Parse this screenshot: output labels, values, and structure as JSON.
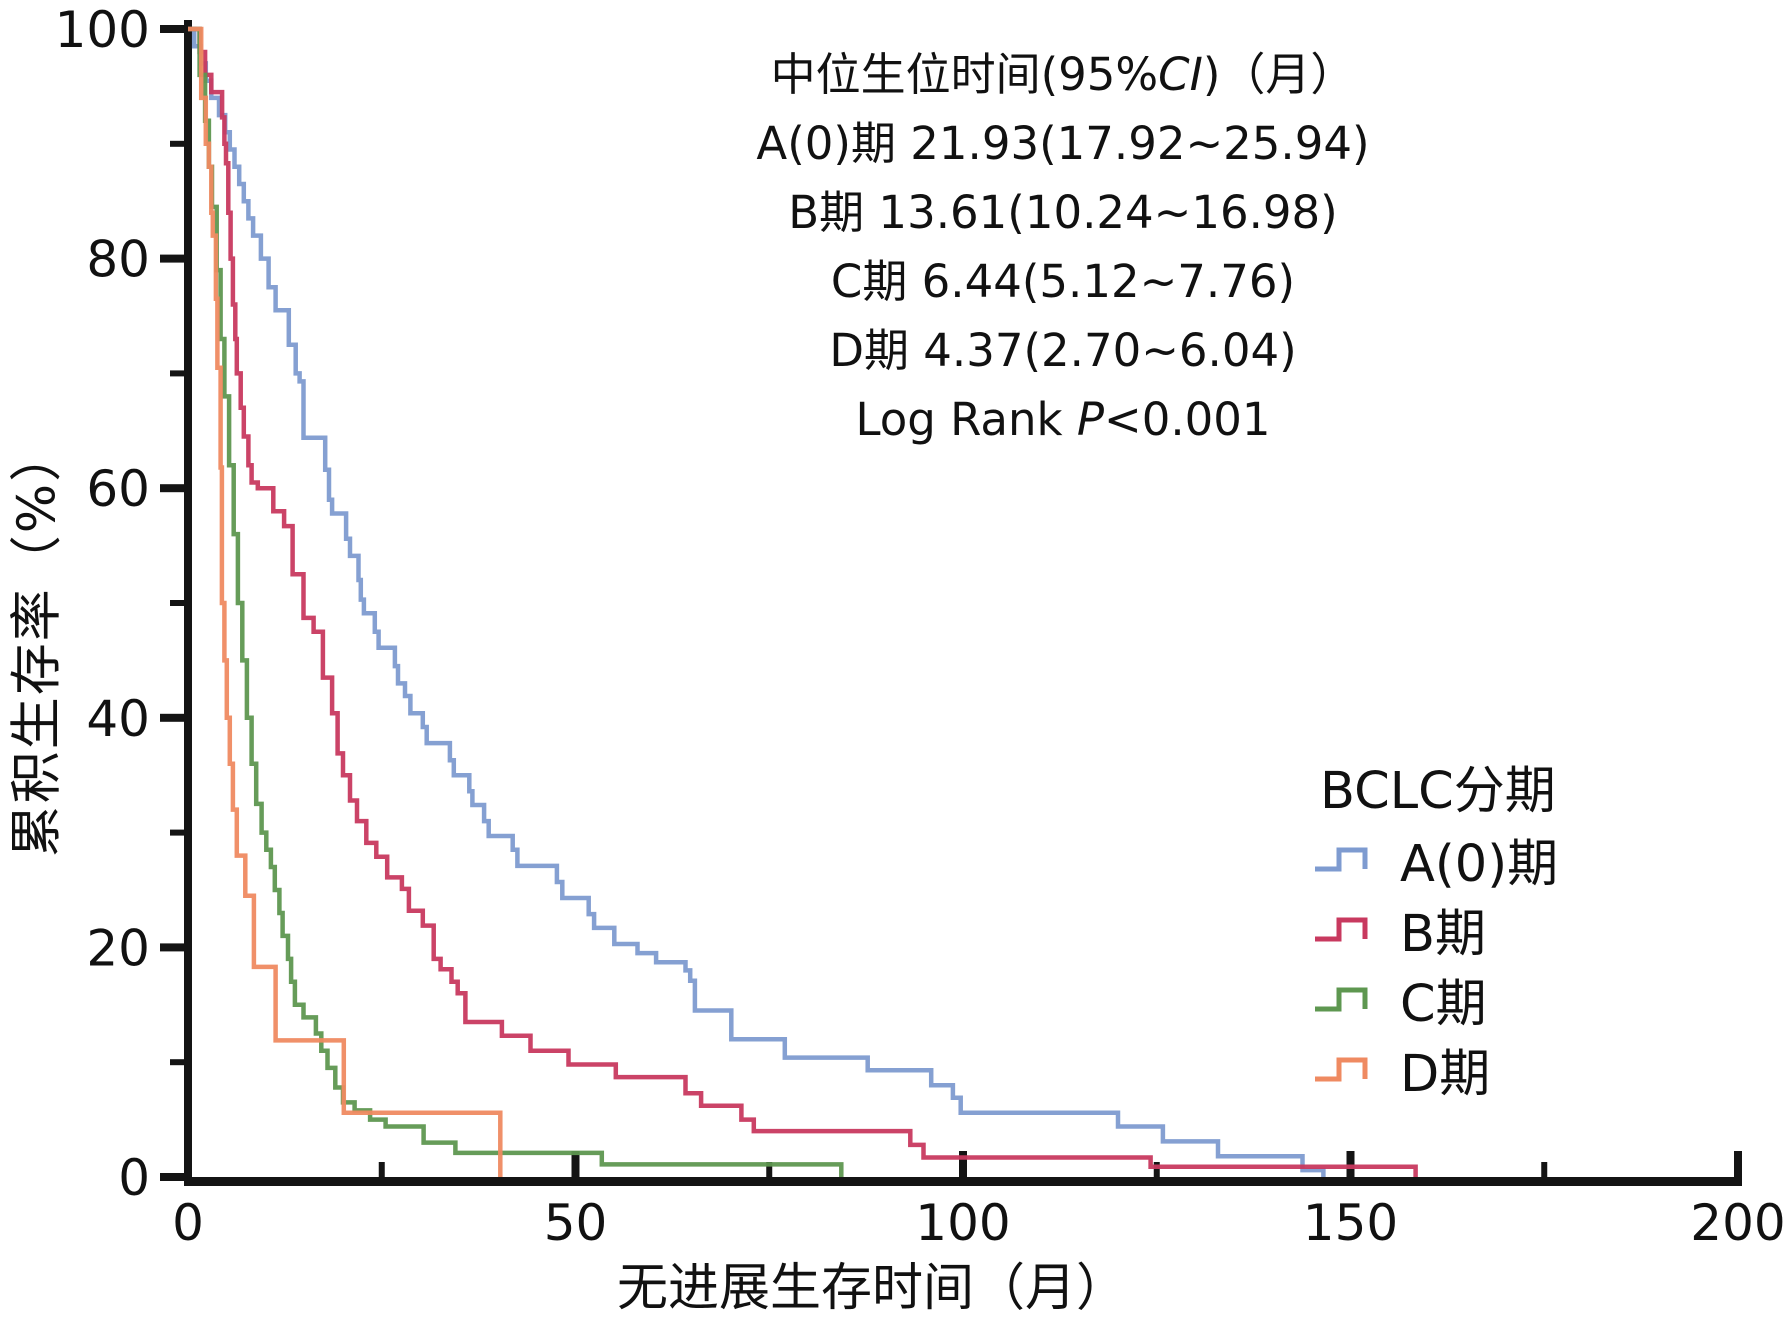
{
  "annotation": {
    "title": {
      "prefix": "中位生位时间(95%",
      "italic": "CI",
      "suffix": ")（月）"
    },
    "lines": [
      "A(0)期 21.93(17.92~25.94)",
      "B期 13.61(10.24~16.98)",
      "C期 6.44(5.12~7.76)",
      "D期 4.37(2.70~6.04)"
    ],
    "logrank": {
      "prefix": "Log Rank ",
      "italic": "P",
      "suffix": "<0.001"
    }
  },
  "legend": {
    "title": "BCLC分期",
    "items": [
      {
        "label": "A(0)期"
      },
      {
        "label": "B期"
      },
      {
        "label": "C期"
      },
      {
        "label": "D期"
      }
    ]
  },
  "chart_data": {
    "type": "line",
    "subtype": "kaplan-meier-step-curves",
    "title": "",
    "xlabel": "无进展生存时间（月）",
    "ylabel": "累积生存率（%）",
    "xlim": [
      0,
      200
    ],
    "ylim": [
      0,
      100
    ],
    "x_major_ticks": [
      0,
      50,
      100,
      150,
      200
    ],
    "x_minor_ticks": [
      25,
      75,
      125,
      175
    ],
    "y_major_ticks": [
      0,
      20,
      40,
      60,
      80,
      100
    ],
    "y_minor_ticks": [
      10,
      30,
      50,
      70,
      90
    ],
    "grid": false,
    "legend_position": "lower right",
    "log_rank_p": "<0.001",
    "axis_color": "#141414",
    "series": [
      {
        "name": "A(0)期",
        "color": "#7E9BD0",
        "median_95ci": "21.93(17.92~25.94)",
        "points": [
          [
            0,
            100
          ],
          [
            0.8,
            98.5
          ],
          [
            1.6,
            97
          ],
          [
            2.3,
            95.5
          ],
          [
            3,
            94
          ],
          [
            4,
            92.5
          ],
          [
            4.8,
            91
          ],
          [
            5.4,
            89.5
          ],
          [
            6,
            88
          ],
          [
            6.6,
            86.5
          ],
          [
            7.2,
            85
          ],
          [
            7.8,
            83.5
          ],
          [
            8.4,
            82
          ],
          [
            9.4,
            80
          ],
          [
            10.4,
            77.5
          ],
          [
            11.3,
            75.5
          ],
          [
            13,
            72.5
          ],
          [
            13.9,
            70
          ],
          [
            14.4,
            69.3
          ],
          [
            14.9,
            64.4
          ],
          [
            17.7,
            61.6
          ],
          [
            18.2,
            59
          ],
          [
            18.6,
            57.8
          ],
          [
            20.4,
            55.6
          ],
          [
            20.9,
            54.1
          ],
          [
            22,
            52
          ],
          [
            22.3,
            50.3
          ],
          [
            22.7,
            49.1
          ],
          [
            24.1,
            47.5
          ],
          [
            24.6,
            46.1
          ],
          [
            26.7,
            44.5
          ],
          [
            27.1,
            43
          ],
          [
            28,
            41.9
          ],
          [
            28.7,
            40.4
          ],
          [
            30.3,
            39.2
          ],
          [
            30.8,
            37.8
          ],
          [
            33.8,
            36.3
          ],
          [
            34.3,
            35
          ],
          [
            36.3,
            33.6
          ],
          [
            36.7,
            32.4
          ],
          [
            38.2,
            31
          ],
          [
            38.8,
            29.7
          ],
          [
            41.9,
            28.5
          ],
          [
            42.5,
            27.1
          ],
          [
            47.6,
            25.7
          ],
          [
            48.3,
            24.3
          ],
          [
            51.7,
            22.9
          ],
          [
            52.4,
            21.7
          ],
          [
            55,
            20.3
          ],
          [
            58,
            19.5
          ],
          [
            60.4,
            18.7
          ],
          [
            64.2,
            18
          ],
          [
            64.8,
            17.1
          ],
          [
            65.4,
            14.5
          ],
          [
            70.1,
            12
          ],
          [
            77,
            10.4
          ],
          [
            87.7,
            9.3
          ],
          [
            95.9,
            8
          ],
          [
            98.7,
            6.9
          ],
          [
            99.7,
            5.6
          ],
          [
            120,
            4.4
          ],
          [
            125.8,
            3.1
          ],
          [
            132.9,
            1.8
          ],
          [
            143.8,
            0.6
          ],
          [
            146.5,
            0
          ]
        ]
      },
      {
        "name": "B期",
        "color": "#C8395F",
        "median_95ci": "13.61(10.24~16.98)",
        "points": [
          [
            0,
            100
          ],
          [
            1.5,
            98
          ],
          [
            2.2,
            96
          ],
          [
            3,
            94.5
          ],
          [
            4.4,
            92.3
          ],
          [
            4.7,
            90
          ],
          [
            4.9,
            88.3
          ],
          [
            5.2,
            84
          ],
          [
            5.5,
            80
          ],
          [
            5.8,
            76
          ],
          [
            6.1,
            73
          ],
          [
            6.3,
            70
          ],
          [
            6.8,
            67
          ],
          [
            7.2,
            64.5
          ],
          [
            7.8,
            62
          ],
          [
            8.2,
            60.5
          ],
          [
            9,
            60
          ],
          [
            11,
            58
          ],
          [
            12.4,
            56.7
          ],
          [
            13.5,
            52.5
          ],
          [
            14.9,
            48.7
          ],
          [
            16.2,
            47.5
          ],
          [
            17.4,
            43.5
          ],
          [
            18.6,
            40.4
          ],
          [
            19.3,
            36.9
          ],
          [
            20,
            35
          ],
          [
            20.9,
            32.8
          ],
          [
            21.8,
            31
          ],
          [
            23,
            29.1
          ],
          [
            24.3,
            27.9
          ],
          [
            25.7,
            26.1
          ],
          [
            27.6,
            25.1
          ],
          [
            28.5,
            23.2
          ],
          [
            30.3,
            21.9
          ],
          [
            31.7,
            19
          ],
          [
            32.6,
            18.1
          ],
          [
            34,
            17
          ],
          [
            34.8,
            16
          ],
          [
            35.8,
            13.5
          ],
          [
            40.5,
            12.3
          ],
          [
            44.2,
            11
          ],
          [
            49.1,
            9.8
          ],
          [
            55.2,
            8.7
          ],
          [
            64.2,
            7.3
          ],
          [
            66.2,
            6.2
          ],
          [
            71.4,
            5
          ],
          [
            73,
            4
          ],
          [
            93.2,
            2.8
          ],
          [
            94.9,
            1.7
          ],
          [
            124.2,
            0.9
          ],
          [
            158.4,
            0
          ]
        ]
      },
      {
        "name": "C期",
        "color": "#5E9750",
        "median_95ci": "6.44(5.12~7.76)",
        "points": [
          [
            0,
            100
          ],
          [
            1.5,
            96
          ],
          [
            2.2,
            92
          ],
          [
            2.7,
            88
          ],
          [
            3.1,
            84.5
          ],
          [
            3.7,
            79
          ],
          [
            4.2,
            73
          ],
          [
            4.7,
            68
          ],
          [
            5.3,
            62
          ],
          [
            5.9,
            56
          ],
          [
            6.44,
            50
          ],
          [
            7,
            45
          ],
          [
            7.6,
            40
          ],
          [
            8.2,
            36
          ],
          [
            8.8,
            32.5
          ],
          [
            9.5,
            30
          ],
          [
            10.1,
            28.5
          ],
          [
            10.7,
            27
          ],
          [
            11.2,
            25
          ],
          [
            11.8,
            23
          ],
          [
            12.2,
            21
          ],
          [
            12.9,
            19
          ],
          [
            13.3,
            17
          ],
          [
            13.8,
            15
          ],
          [
            14.9,
            13.9
          ],
          [
            16.5,
            12.5
          ],
          [
            17.2,
            11
          ],
          [
            18,
            9.5
          ],
          [
            19,
            7.8
          ],
          [
            20,
            6.5
          ],
          [
            21.5,
            5.8
          ],
          [
            23.5,
            5
          ],
          [
            25.5,
            4.4
          ],
          [
            30.4,
            3
          ],
          [
            34.5,
            2.1
          ],
          [
            53.4,
            1.1
          ],
          [
            84.3,
            0
          ]
        ]
      },
      {
        "name": "D期",
        "color": "#EF8A61",
        "median_95ci": "4.37(2.70~6.04)",
        "points": [
          [
            0,
            100
          ],
          [
            1.7,
            94
          ],
          [
            2.3,
            90
          ],
          [
            2.7,
            88
          ],
          [
            3,
            84
          ],
          [
            3.2,
            82
          ],
          [
            3.6,
            76.5
          ],
          [
            3.8,
            70.5
          ],
          [
            4.2,
            61.8
          ],
          [
            4.37,
            50
          ],
          [
            4.7,
            45
          ],
          [
            5,
            40
          ],
          [
            5.4,
            36
          ],
          [
            5.8,
            32
          ],
          [
            6.3,
            28
          ],
          [
            7.4,
            24.5
          ],
          [
            8.5,
            18.3
          ],
          [
            11.3,
            11.9
          ],
          [
            20.1,
            5.6
          ],
          [
            40.3,
            0
          ]
        ]
      }
    ]
  }
}
